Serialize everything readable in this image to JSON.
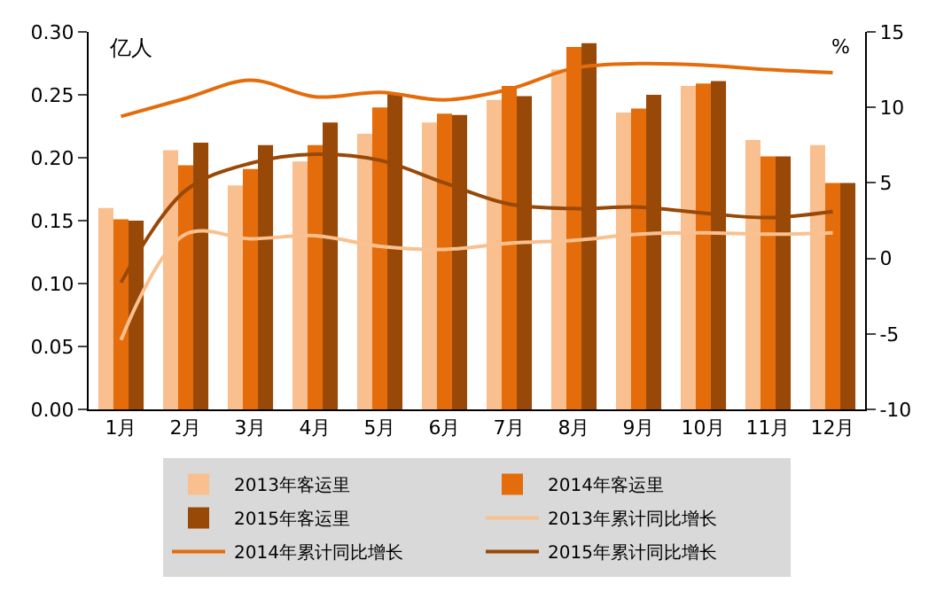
{
  "chart_data": {
    "type": "bar",
    "ylabel": "亿人",
    "y2label": "%",
    "categories": [
      "1月",
      "2月",
      "3月",
      "4月",
      "5月",
      "6月",
      "7月",
      "8月",
      "9月",
      "10月",
      "11月",
      "12月"
    ],
    "series": [
      {
        "name": "2013年客运里",
        "color": "#f9bf8f",
        "values": [
          0.16,
          0.206,
          0.178,
          0.197,
          0.219,
          0.228,
          0.246,
          0.27,
          0.236,
          0.257,
          0.214,
          0.21
        ]
      },
      {
        "name": "2014年客运里",
        "color": "#e46c0a",
        "values": [
          0.151,
          0.194,
          0.191,
          0.21,
          0.24,
          0.235,
          0.257,
          0.288,
          0.239,
          0.259,
          0.201,
          0.18
        ]
      },
      {
        "name": "2015年客运里",
        "color": "#984807",
        "values": [
          0.15,
          0.212,
          0.21,
          0.228,
          0.251,
          0.234,
          0.249,
          0.291,
          0.25,
          0.261,
          0.201,
          0.18
        ]
      },
      {
        "name": "2013年累计同比增长",
        "type": "line",
        "axis": "y2",
        "color": "#fac090",
        "values": [
          -5.4,
          1.6,
          1.3,
          1.5,
          0.8,
          0.6,
          1.0,
          1.2,
          1.6,
          1.7,
          1.6,
          1.7
        ]
      },
      {
        "name": "2014年累计同比增长",
        "type": "line",
        "axis": "y2",
        "color": "#e46c0a",
        "values": [
          9.4,
          10.6,
          11.8,
          10.7,
          11.0,
          10.5,
          11.2,
          12.6,
          12.9,
          12.8,
          12.5,
          12.3
        ]
      },
      {
        "name": "2015年累计同比增长",
        "type": "line",
        "axis": "y2",
        "color": "#984807",
        "values": [
          -1.6,
          4.5,
          6.3,
          6.9,
          6.5,
          5.0,
          3.6,
          3.3,
          3.4,
          3.0,
          2.7,
          3.1
        ]
      }
    ],
    "ylim": [
      0,
      0.3
    ],
    "yticks": [
      {
        "value": 0,
        "label": "0.00"
      },
      {
        "value": 0.05,
        "label": "0.05"
      },
      {
        "value": 0.1,
        "label": "0.10"
      },
      {
        "value": 0.15,
        "label": "0.15"
      },
      {
        "value": 0.2,
        "label": "0.20"
      },
      {
        "value": 0.25,
        "label": "0.25"
      },
      {
        "value": 0.3,
        "label": "0.30"
      }
    ],
    "y2lim": [
      -10,
      15
    ],
    "y2ticks": [
      -10,
      -5,
      0,
      5,
      10,
      15
    ],
    "legend": "bottom",
    "marker": "none",
    "line_style": "solid"
  }
}
